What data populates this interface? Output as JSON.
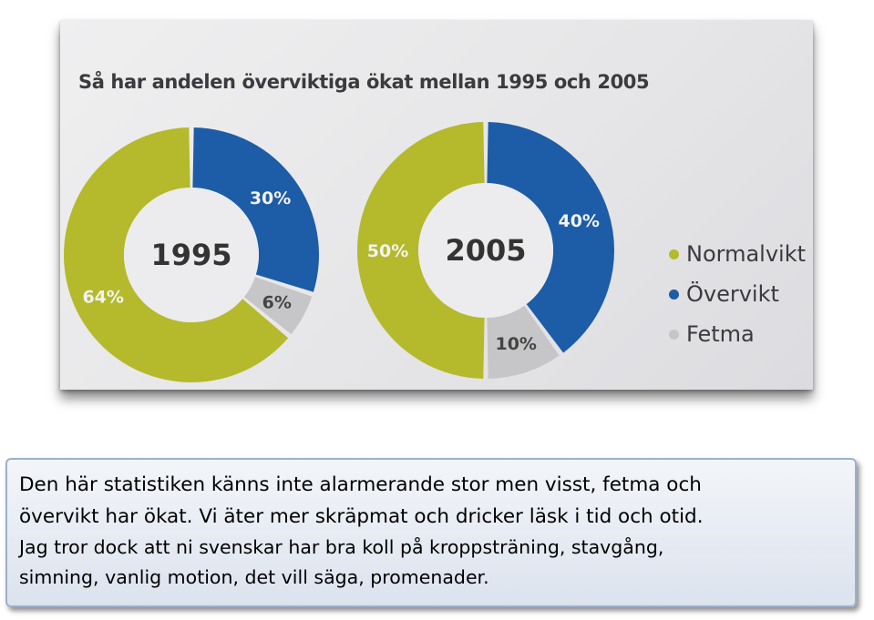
{
  "chart_data": {
    "type": "pie",
    "title": "Så har andelen överviktiga ökat mellan 1995 och 2005",
    "categories": [
      "Normalvikt",
      "Övervikt",
      "Fetma"
    ],
    "colors": [
      "#b5b92c",
      "#1d5ca6",
      "#c6c6c8"
    ],
    "charts": [
      {
        "center_label": "1995",
        "values": [
          64,
          30,
          6
        ],
        "value_labels": [
          "64%",
          "30%",
          "6%"
        ]
      },
      {
        "center_label": "2005",
        "values": [
          50,
          40,
          10
        ],
        "value_labels": [
          "50%",
          "40%",
          "10%"
        ]
      }
    ],
    "legend": [
      {
        "label": "Normalvikt",
        "color": "#b5b92c"
      },
      {
        "label": "Övervikt",
        "color": "#1d5ca6"
      },
      {
        "label": "Fetma",
        "color": "#c6c6c8"
      }
    ],
    "legend_position": "right"
  },
  "caption": {
    "lines": [
      "Den här statistiken känns inte alarmerande stor men visst, fetma och",
      "övervikt har ökat. Vi äter mer skräpmat och dricker läsk i tid och otid.",
      "Jag tror dock att ni svenskar har bra koll på kroppsträning, stavgång,",
      "simning, vanlig motion, det vill säga, promenader."
    ]
  }
}
